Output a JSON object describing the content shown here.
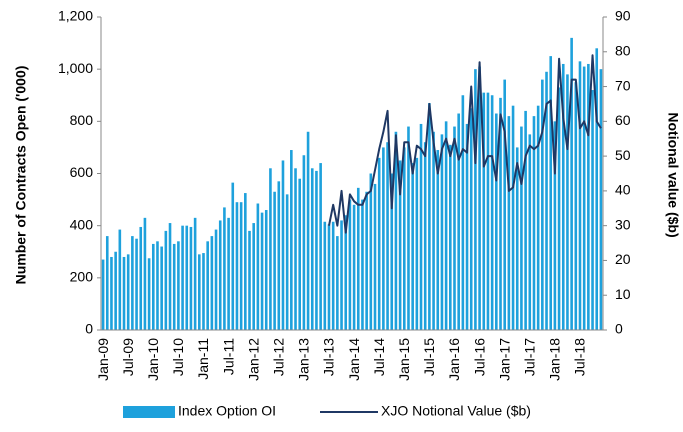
{
  "chart_data": {
    "type": "bar",
    "y_label": "Number of  Contracts Open ('000)",
    "y2_label": "Notional value ($b)",
    "categories": [
      "Jan-09",
      null,
      null,
      null,
      null,
      null,
      "Jul-09",
      null,
      null,
      null,
      null,
      null,
      "Jan-10",
      null,
      null,
      null,
      null,
      null,
      "Jul-10",
      null,
      null,
      null,
      null,
      null,
      "Jan-11",
      null,
      null,
      null,
      null,
      null,
      "Jul-11",
      null,
      null,
      null,
      null,
      null,
      "Jan-12",
      null,
      null,
      null,
      null,
      null,
      "Jul-12",
      null,
      null,
      null,
      null,
      null,
      "Jan-13",
      null,
      null,
      null,
      null,
      null,
      "Jul-13",
      null,
      null,
      null,
      null,
      null,
      "Jan-14",
      null,
      null,
      null,
      null,
      null,
      "Jul-14",
      null,
      null,
      null,
      null,
      null,
      "Jan-15",
      null,
      null,
      null,
      null,
      null,
      "Jul-15",
      null,
      null,
      null,
      null,
      null,
      "Jan-16",
      null,
      null,
      null,
      null,
      null,
      "Jul-16",
      null,
      null,
      null,
      null,
      null,
      "Jan-17",
      null,
      null,
      null,
      null,
      null,
      "Jul-17",
      null,
      null,
      null,
      null,
      null,
      "Jan-18",
      null,
      null,
      null,
      null,
      null,
      "Jul-18",
      null,
      null,
      null,
      null,
      null
    ],
    "series": [
      {
        "name": "Index Option OI",
        "type": "bar",
        "color": "#1ea1dc",
        "values": [
          270,
          360,
          280,
          300,
          385,
          280,
          290,
          360,
          350,
          395,
          430,
          275,
          330,
          340,
          320,
          380,
          410,
          330,
          340,
          400,
          400,
          395,
          430,
          290,
          295,
          340,
          360,
          385,
          420,
          470,
          430,
          565,
          490,
          490,
          525,
          380,
          410,
          485,
          450,
          460,
          620,
          530,
          570,
          650,
          520,
          690,
          620,
          580,
          670,
          760,
          620,
          610,
          640,
          415,
          405,
          415,
          360,
          420,
          440,
          500,
          480,
          545,
          500,
          530,
          600,
          560,
          660,
          700,
          720,
          600,
          760,
          650,
          700,
          780,
          640,
          660,
          790,
          720,
          870,
          760,
          690,
          750,
          800,
          710,
          780,
          830,
          900,
          790,
          850,
          1000,
          1010,
          910,
          910,
          900,
          830,
          890,
          960,
          820,
          860,
          700,
          780,
          840,
          750,
          820,
          860,
          960,
          990,
          1050,
          800,
          930,
          1020,
          980,
          1120,
          950,
          1030,
          1010,
          1020,
          920,
          1080,
          1000
        ]
      },
      {
        "name": "XJO Notional Value ($b)",
        "type": "line",
        "axis": "y2",
        "color": "#1f3864",
        "values": [
          null,
          null,
          null,
          null,
          null,
          null,
          null,
          null,
          null,
          null,
          null,
          null,
          null,
          null,
          null,
          null,
          null,
          null,
          null,
          null,
          null,
          null,
          null,
          null,
          null,
          null,
          null,
          null,
          null,
          null,
          null,
          null,
          null,
          null,
          null,
          null,
          null,
          null,
          null,
          null,
          null,
          null,
          null,
          null,
          null,
          null,
          null,
          null,
          null,
          null,
          null,
          null,
          null,
          null,
          30,
          36,
          30,
          40,
          28,
          39,
          37,
          36,
          36,
          39,
          40,
          46,
          52,
          57,
          63,
          35,
          56,
          39,
          54,
          54,
          45,
          53,
          52,
          50,
          65,
          54,
          45,
          52,
          55,
          50,
          55,
          49,
          52,
          51,
          70,
          48,
          77,
          47,
          50,
          50,
          43,
          62,
          57,
          40,
          41,
          48,
          42,
          50,
          53,
          52,
          53,
          57,
          65,
          66,
          45,
          78,
          61,
          52,
          72,
          72,
          58,
          60,
          56,
          79,
          60,
          58
        ]
      }
    ],
    "ylim": [
      0,
      1200
    ],
    "yticks": [
      0,
      200,
      400,
      600,
      800,
      {
        "value": 1000,
        "label": "1,000"
      },
      {
        "value": 1200,
        "label": "1,200"
      }
    ],
    "y2lim": [
      0,
      90
    ],
    "y2ticks": [
      0,
      10,
      20,
      30,
      40,
      50,
      60,
      70,
      80,
      90
    ],
    "legend": "bottom"
  }
}
